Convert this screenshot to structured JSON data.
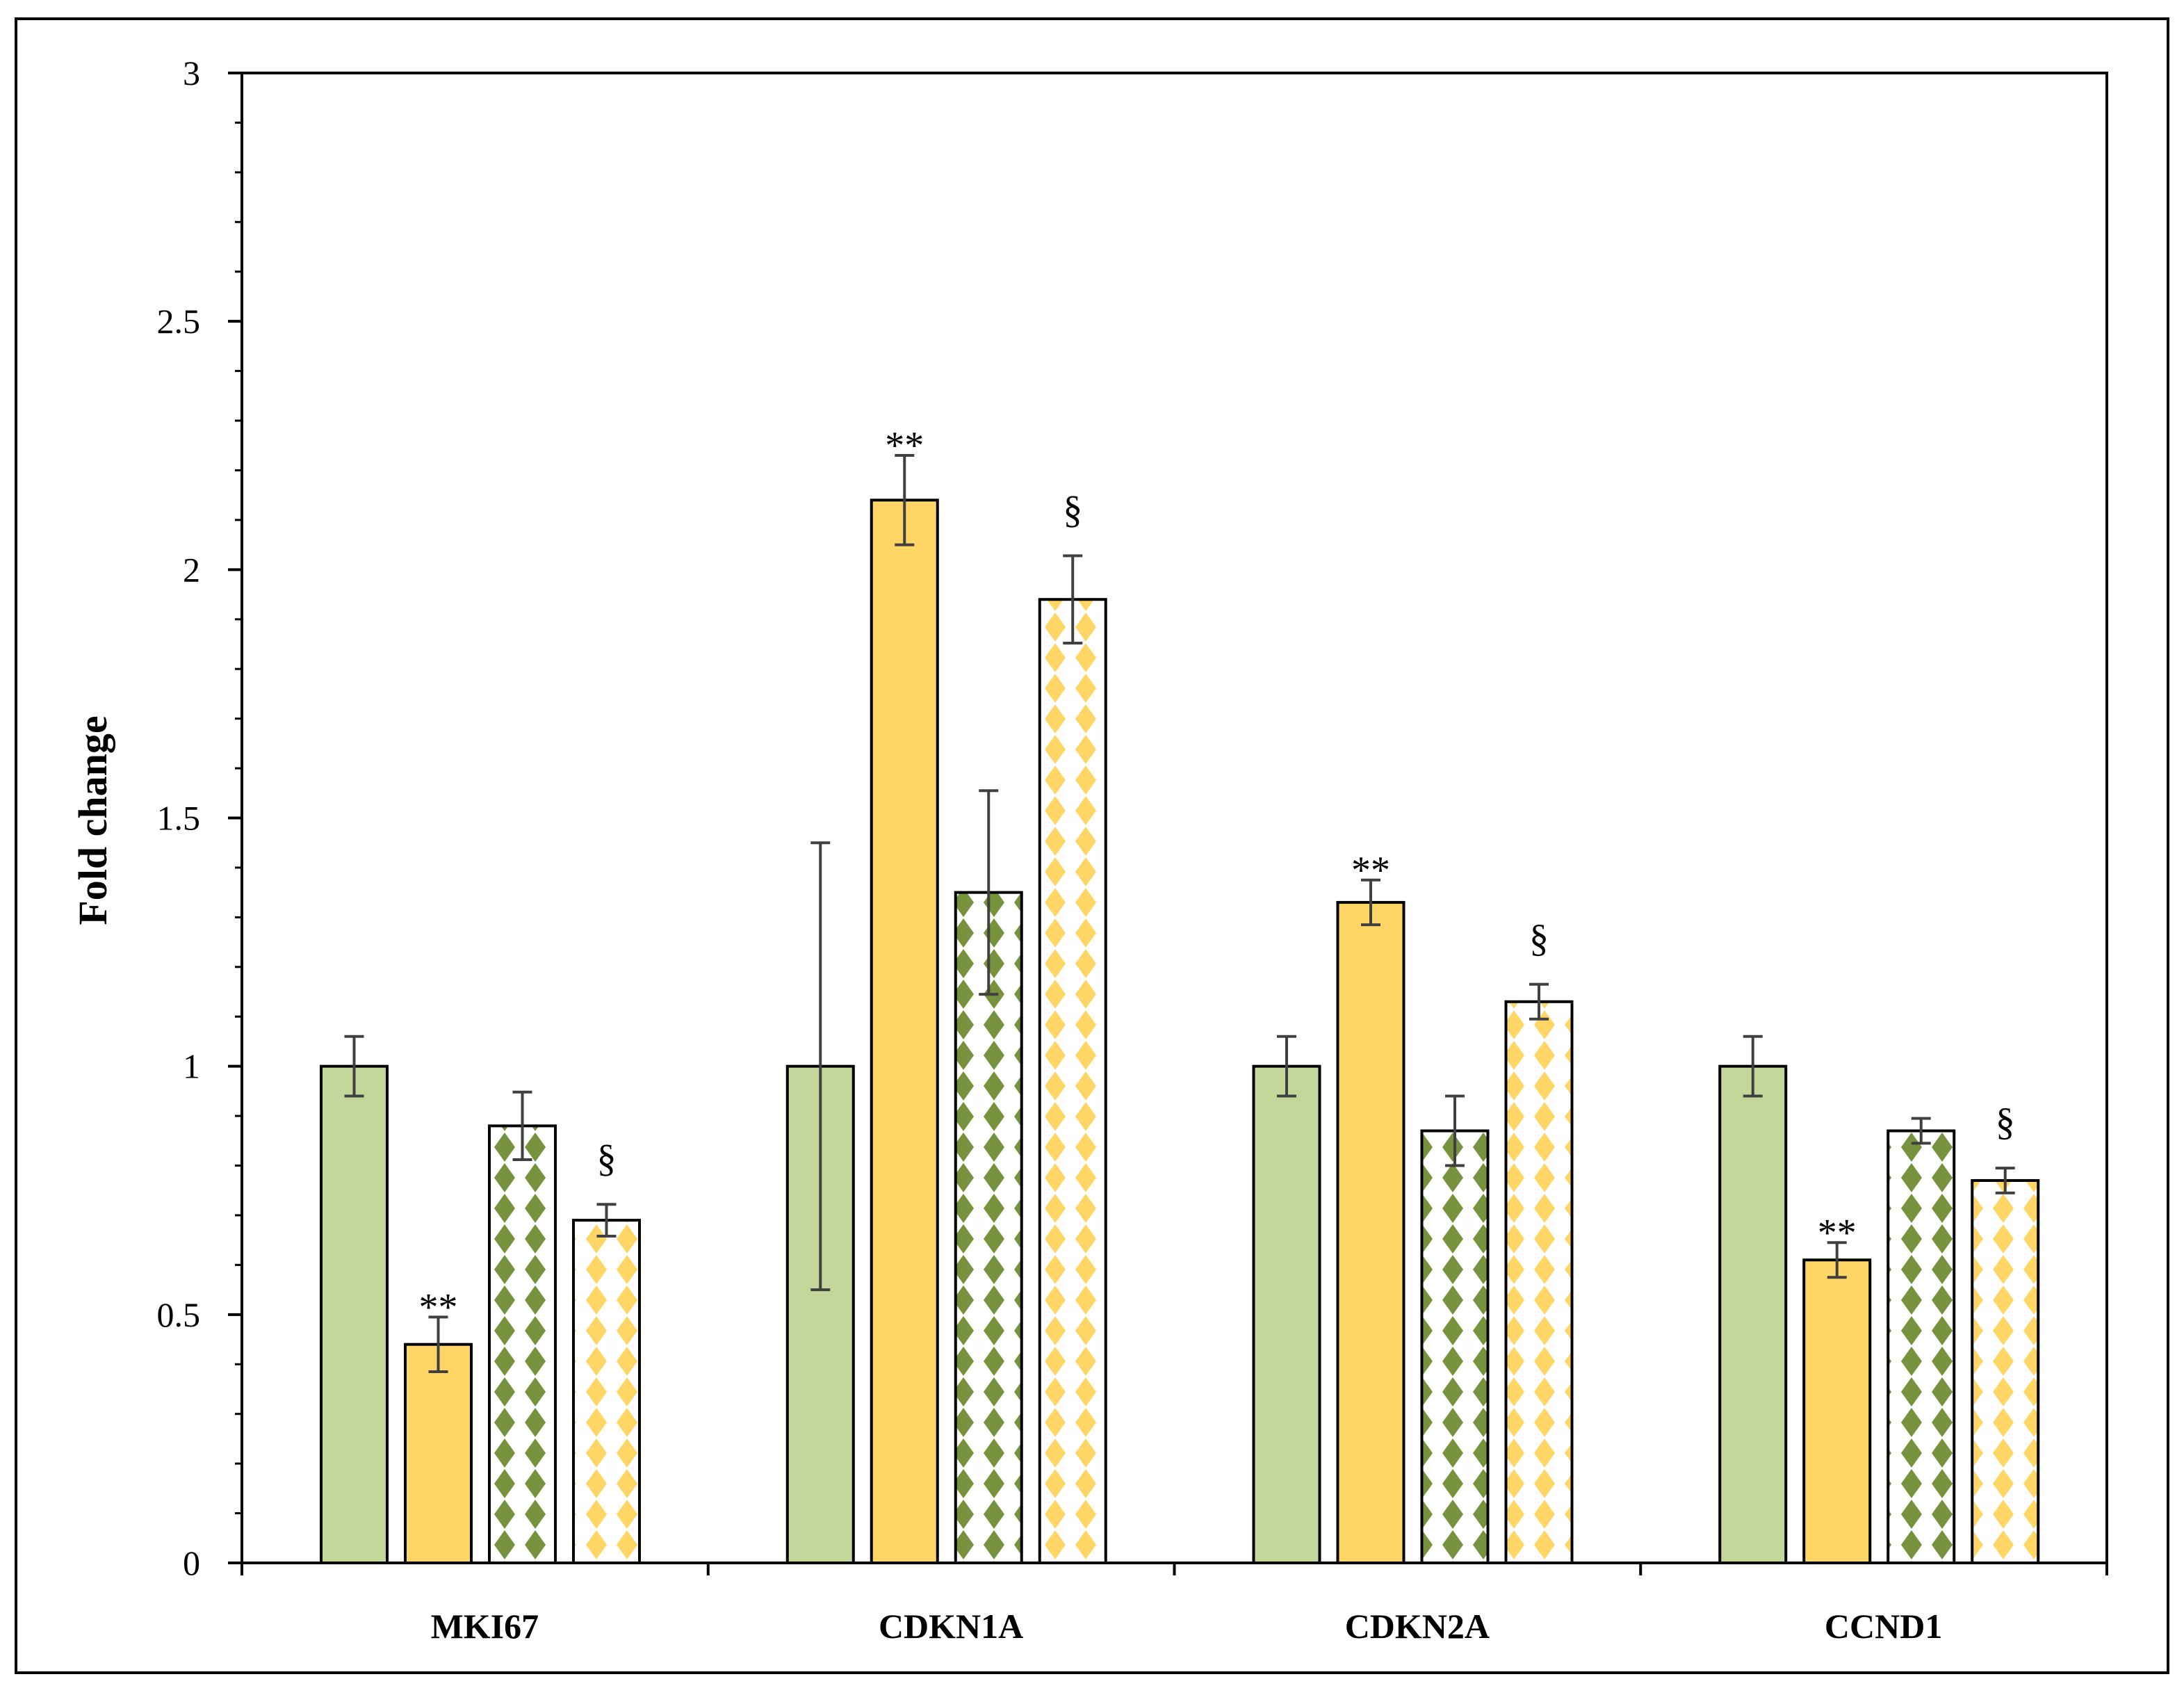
{
  "chart_data": {
    "type": "bar",
    "title": "",
    "xlabel": "",
    "ylabel": "Fold change",
    "ylim": [
      0,
      3
    ],
    "yticks": [
      "0",
      "0.5",
      "1",
      "1.5",
      "2",
      "2.5",
      "3"
    ],
    "ytick_values": [
      0,
      0.5,
      1,
      1.5,
      2,
      2.5,
      3
    ],
    "minor_tick_step": 0.1,
    "grid": false,
    "legend": "none",
    "categories": [
      "MKI67",
      "CDKN1A",
      "CDKN2A",
      "CCND1"
    ],
    "series": [
      {
        "name": "series-1",
        "fill": "solid",
        "color": "#c4d79b",
        "values": [
          1.0,
          1.0,
          1.0,
          1.0
        ],
        "errors": [
          0.06,
          0.45,
          0.06,
          0.06
        ]
      },
      {
        "name": "series-2",
        "fill": "solid",
        "color": "#ffd666",
        "values": [
          0.44,
          2.14,
          1.33,
          0.61
        ],
        "errors": [
          0.055,
          0.09,
          0.045,
          0.035
        ]
      },
      {
        "name": "series-3",
        "fill": "diamond",
        "color": "#76923c",
        "values": [
          0.88,
          1.35,
          0.87,
          0.87
        ],
        "errors": [
          0.068,
          0.205,
          0.07,
          0.025
        ]
      },
      {
        "name": "series-4",
        "fill": "diamond",
        "color": "#ffd666",
        "values": [
          0.69,
          1.94,
          1.13,
          0.77
        ],
        "errors": [
          0.032,
          0.088,
          0.035,
          0.025
        ]
      }
    ],
    "annotations": [
      {
        "text": "**",
        "category": 0,
        "series": 1
      },
      {
        "text": "§",
        "category": 0,
        "series": 3
      },
      {
        "text": "**",
        "category": 1,
        "series": 1
      },
      {
        "text": "§",
        "category": 1,
        "series": 3
      },
      {
        "text": "**",
        "category": 2,
        "series": 1
      },
      {
        "text": "§",
        "category": 2,
        "series": 3
      },
      {
        "text": "**",
        "category": 3,
        "series": 1
      },
      {
        "text": "§",
        "category": 3,
        "series": 3
      }
    ]
  }
}
